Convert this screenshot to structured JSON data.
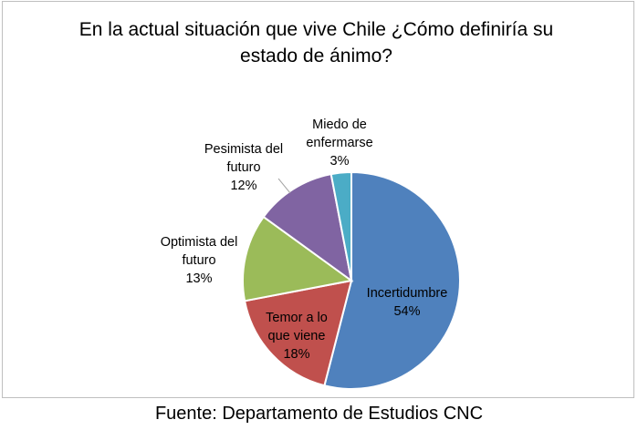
{
  "chart_data": {
    "type": "pie",
    "title_lines": [
      "En la actual situación que vive Chile ¿Cómo definiría su",
      "estado de ánimo?"
    ],
    "slices": [
      {
        "label_lines": [
          "Incertidumbre"
        ],
        "value": 54,
        "value_label": "54%",
        "color": "#4f81bd"
      },
      {
        "label_lines": [
          "Temor a lo",
          "que viene"
        ],
        "value": 18,
        "value_label": "18%",
        "color": "#c0504d"
      },
      {
        "label_lines": [
          "Optimista del",
          "futuro"
        ],
        "value": 13,
        "value_label": "13%",
        "color": "#9bbb59"
      },
      {
        "label_lines": [
          "Pesimista del",
          "futuro"
        ],
        "value": 12,
        "value_label": "12%",
        "color": "#8064a2"
      },
      {
        "label_lines": [
          "Miedo de",
          "enfermarse"
        ],
        "value": 3,
        "value_label": "3%",
        "color": "#4bacc6"
      }
    ]
  },
  "source": "Fuente: Departamento de Estudios CNC"
}
